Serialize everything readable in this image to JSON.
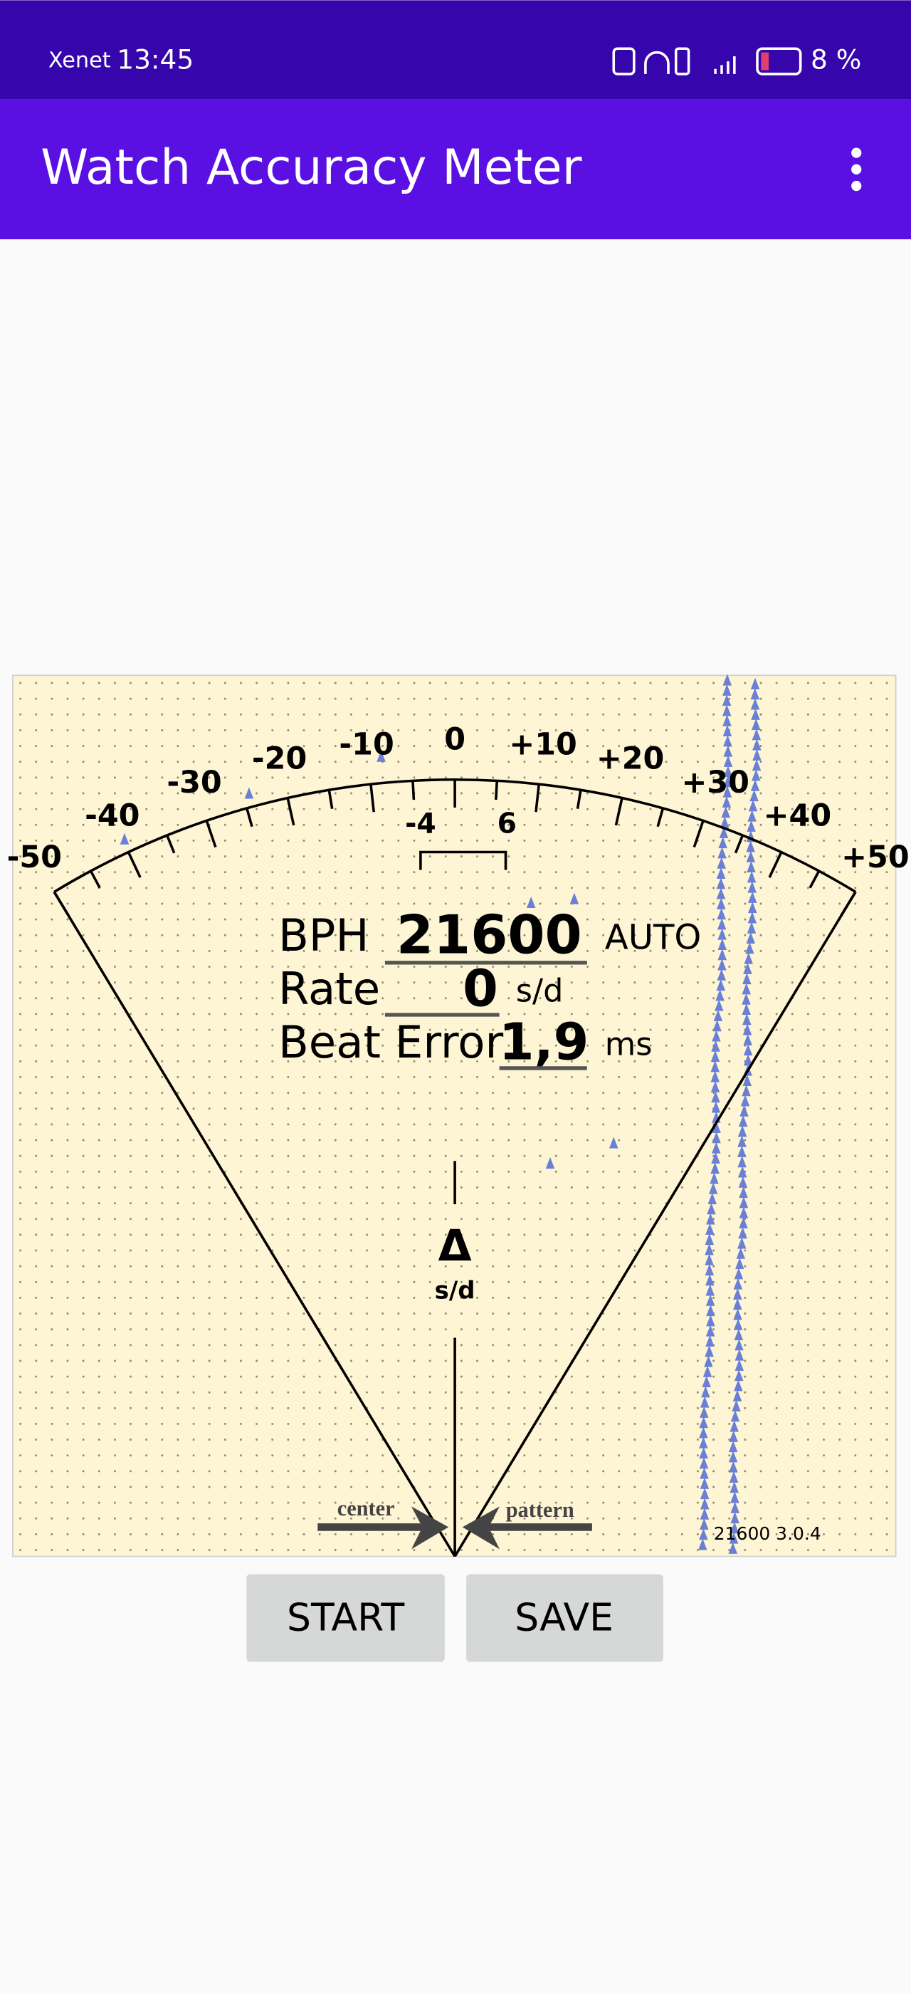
{
  "status_bar": {
    "carrier": "Xenet",
    "time": "13:45",
    "battery": "8 %"
  },
  "app_bar": {
    "title": "Watch Accuracy Meter"
  },
  "meter": {
    "scale_labels": [
      "-50",
      "-40",
      "-30",
      "-20",
      "-10",
      "0",
      "+10",
      "+20",
      "+30",
      "+40",
      "+50"
    ],
    "inner_labels": [
      "-4",
      "6"
    ],
    "readout": {
      "bph_label": "BPH",
      "bph": "21600",
      "mode": "AUTO",
      "rate_label": "Rate",
      "rate": "0",
      "rate_unit": "s/d",
      "beat_error_label": "Beat Error",
      "beat_error": "1,9",
      "beat_error_unit": "ms"
    },
    "delta": "Δ",
    "delta_unit": "s/d",
    "center_label": "center",
    "pattern_label": "pattern",
    "version": "21600 3.0.4"
  },
  "buttons": [
    "START",
    "SAVE"
  ]
}
